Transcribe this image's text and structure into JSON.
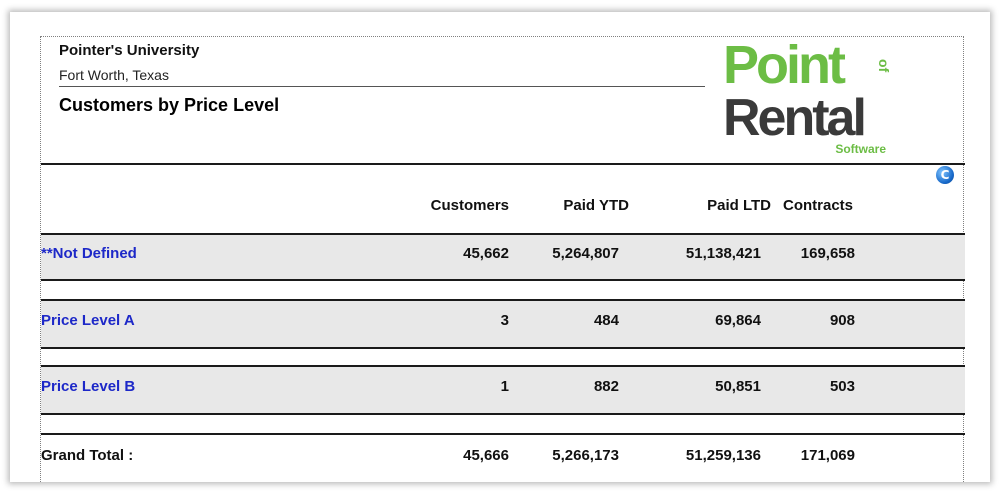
{
  "header": {
    "company": "Pointer's University",
    "city": "Fort Worth, Texas",
    "title": "Customers by Price Level"
  },
  "logo": {
    "line1": "Point",
    "line2": "Rental",
    "of_text": "of",
    "tagline": "Software",
    "green": "#6cbd45",
    "dark": "#3a3a3a"
  },
  "refresh_icon": {
    "glyph": "C",
    "name": "refresh-icon"
  },
  "columns": [
    "Customers",
    "Paid YTD",
    "Paid LTD",
    "Contracts"
  ],
  "rows": [
    {
      "label": "**Not Defined",
      "values": [
        "45,662",
        "5,264,807",
        "51,138,421",
        "169,658"
      ]
    },
    {
      "label": "Price Level A",
      "values": [
        "3",
        "484",
        "69,864",
        "908"
      ]
    },
    {
      "label": "Price Level B",
      "values": [
        "1",
        "882",
        "50,851",
        "503"
      ]
    }
  ],
  "total": {
    "label": "Grand Total :",
    "values": [
      "45,666",
      "5,266,173",
      "51,259,136",
      "171,069"
    ]
  },
  "colors": {
    "link_blue": "#1d28c8",
    "band_gray": "#e8e8e8"
  }
}
